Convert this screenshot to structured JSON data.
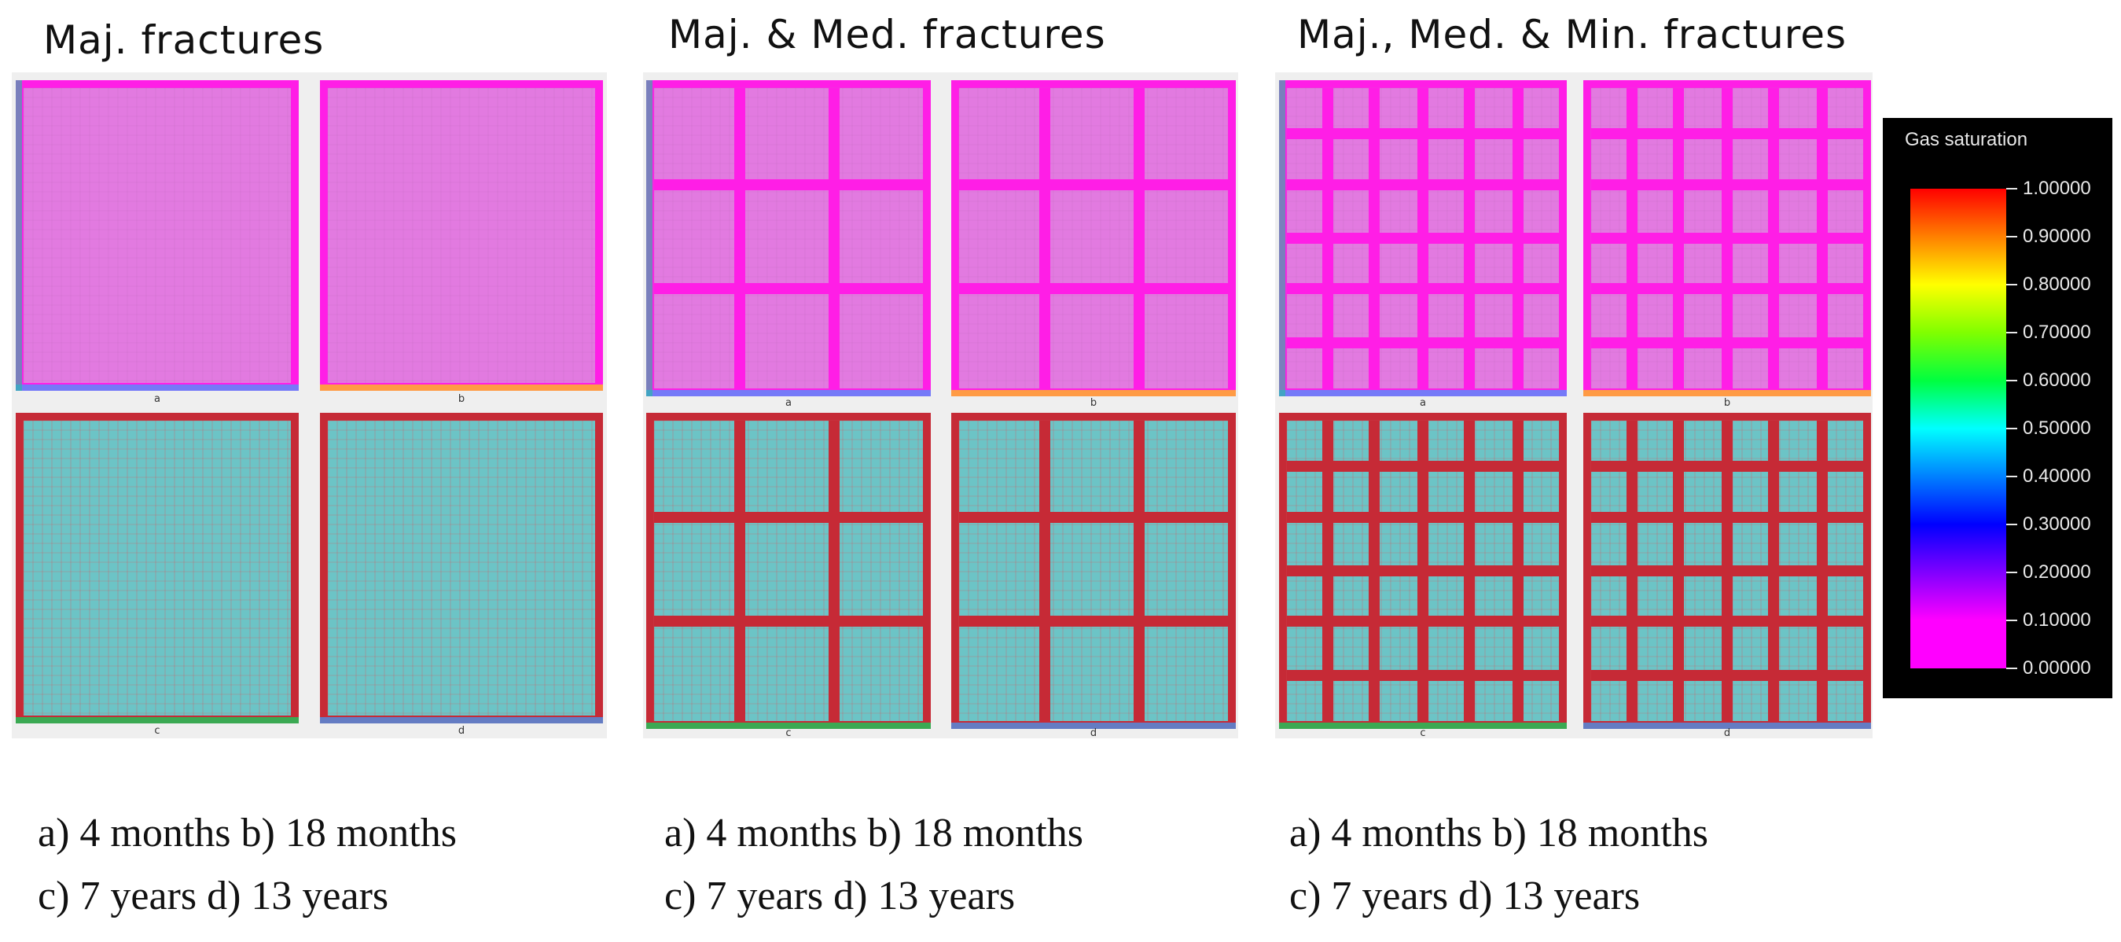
{
  "groups": [
    {
      "title": "Maj. fractures",
      "captions": [
        "a) 4 months b) 18 months",
        "c) 7 years d) 13 years"
      ],
      "fracture_levels": [
        "major"
      ],
      "panels": [
        {
          "label": "a",
          "state": "4 months"
        },
        {
          "label": "b",
          "state": "18 months"
        },
        {
          "label": "c",
          "state": "7 years"
        },
        {
          "label": "d",
          "state": "13 years"
        }
      ]
    },
    {
      "title": "Maj. & Med. fractures",
      "captions": [
        "a) 4 months b) 18 months",
        "c) 7 years d) 13 years"
      ],
      "fracture_levels": [
        "major",
        "medium"
      ],
      "panels": [
        {
          "label": "a",
          "state": "4 months"
        },
        {
          "label": "b",
          "state": "18 months"
        },
        {
          "label": "c",
          "state": "7 years"
        },
        {
          "label": "d",
          "state": "13 years"
        }
      ]
    },
    {
      "title": "Maj., Med. & Min. fractures",
      "captions": [
        "a) 4 months b) 18 months",
        "c) 7 years d) 13 years"
      ],
      "fracture_levels": [
        "major",
        "medium",
        "minor"
      ],
      "panels": [
        {
          "label": "a",
          "state": "4 months"
        },
        {
          "label": "b",
          "state": "18 months"
        },
        {
          "label": "c",
          "state": "7 years"
        },
        {
          "label": "d",
          "state": "13 years"
        }
      ]
    }
  ],
  "legend": {
    "title": "Gas saturation",
    "ticks": [
      "1.00000",
      "0.90000",
      "0.80000",
      "0.70000",
      "0.60000",
      "0.50000",
      "0.40000",
      "0.30000",
      "0.20000",
      "0.10000",
      "0.00000"
    ]
  },
  "colors": {
    "early_matrix": "#e27ae0",
    "early_fracture": "#ff1ee6",
    "late_matrix": "#6cc4c6",
    "late_fracture": "#c62a36",
    "background_frame": "#efefef"
  }
}
